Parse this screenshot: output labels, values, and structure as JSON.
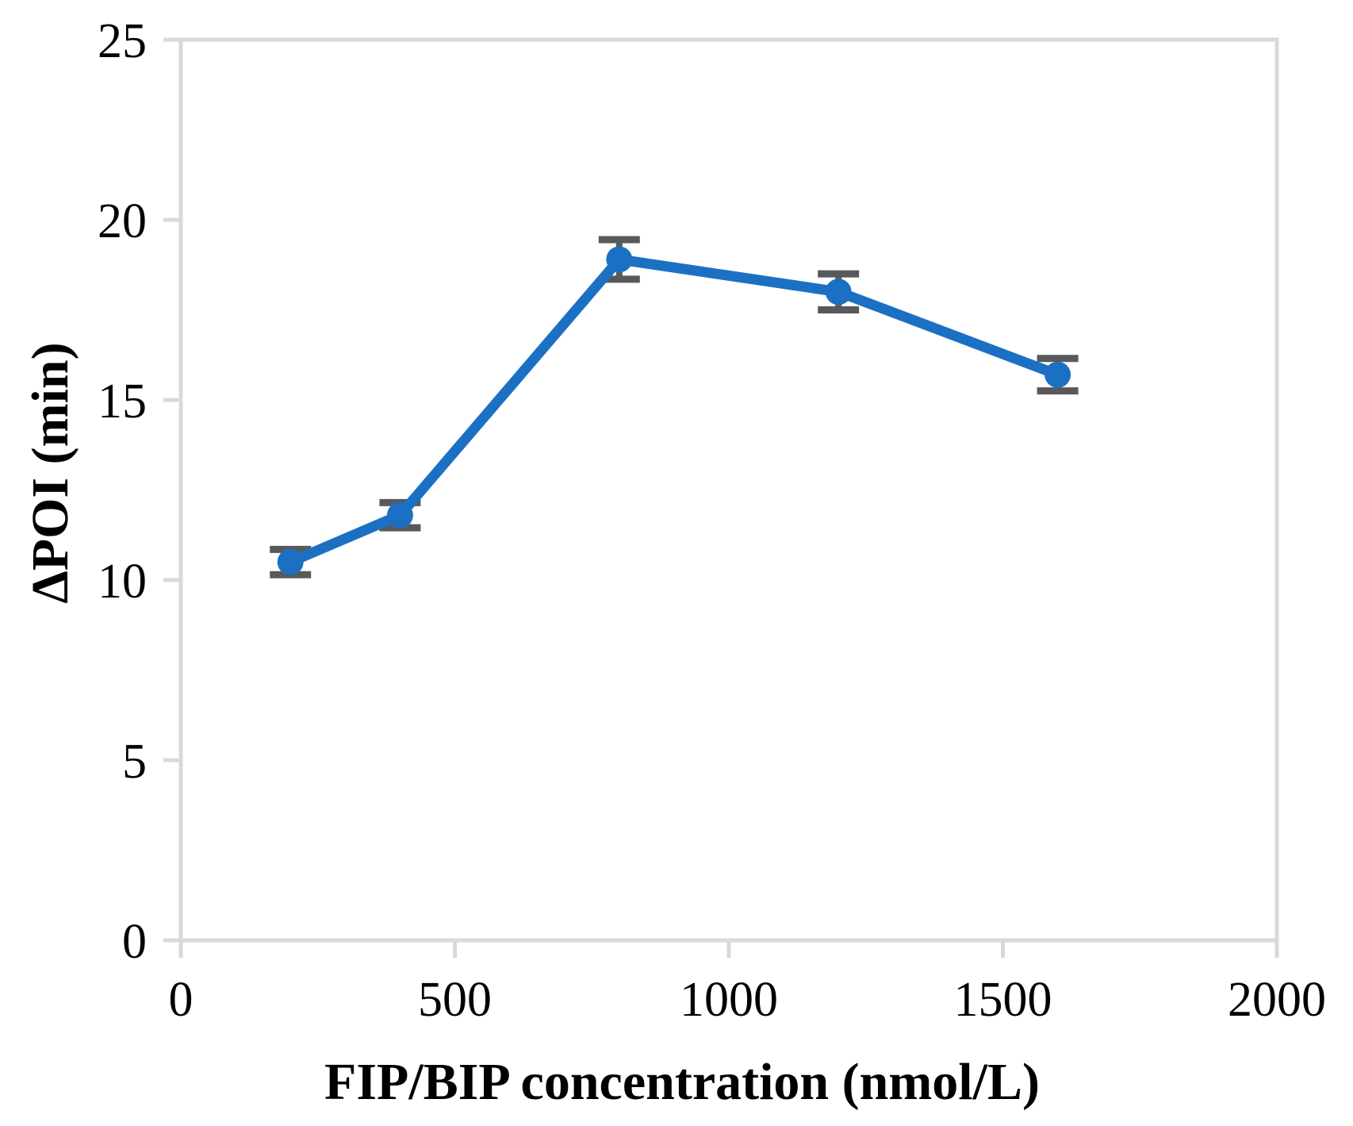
{
  "figure": {
    "background": "#ffffff"
  },
  "chart_data": {
    "type": "line",
    "title": "",
    "xlabel": "FIP/BIP concentration (nmol/L)",
    "ylabel": "ΔPOI (min)",
    "x": [
      200,
      400,
      800,
      1200,
      1600
    ],
    "series": [
      {
        "name": "ΔPOI",
        "values": [
          10.5,
          11.8,
          18.9,
          18.0,
          15.7
        ],
        "errors": [
          0.35,
          0.35,
          0.55,
          0.5,
          0.45
        ]
      }
    ],
    "xlim": [
      0,
      2000
    ],
    "ylim": [
      0,
      25
    ],
    "xticks": [
      0,
      500,
      1000,
      1500,
      2000
    ],
    "yticks": [
      0,
      5,
      10,
      15,
      20,
      25
    ],
    "grid": false,
    "legend": "none",
    "marker": "circle",
    "colors": {
      "line": "#1B70C4",
      "marker": "#1B70C4",
      "error_bar": "#595959",
      "axis": "#D9D9D9",
      "text": "#000000"
    }
  }
}
